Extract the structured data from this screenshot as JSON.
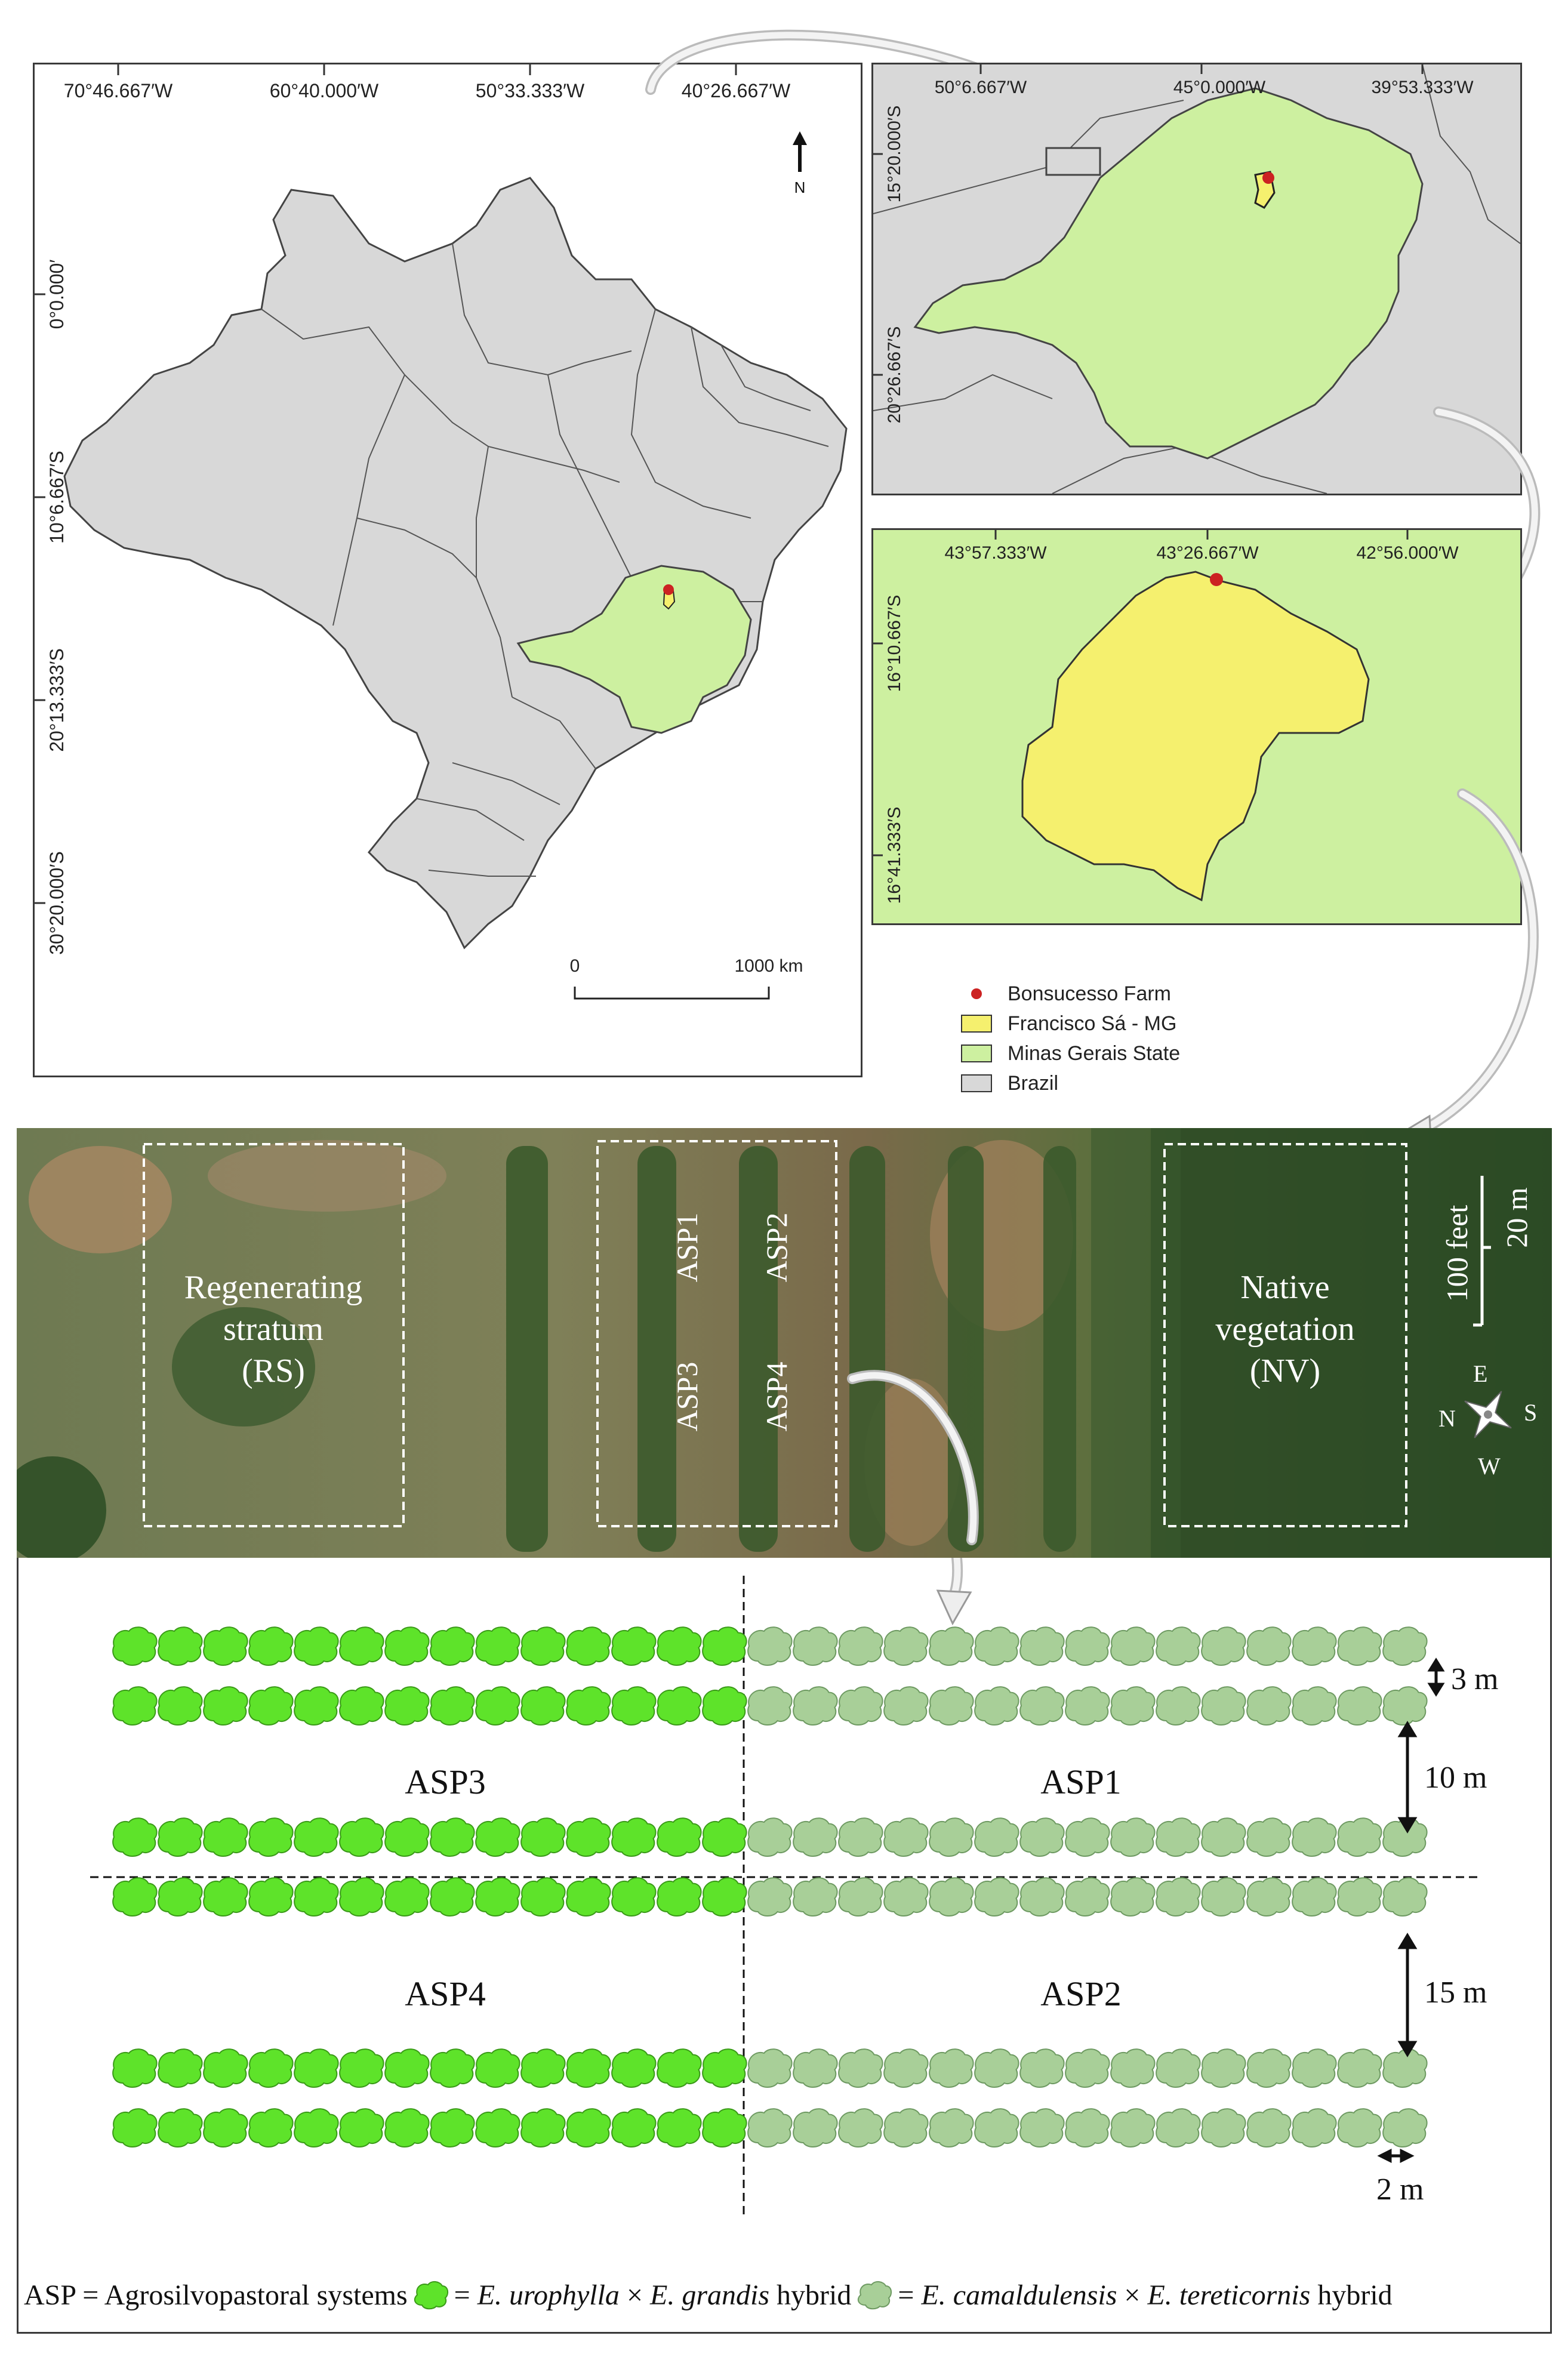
{
  "brazil_map": {
    "lon_labels": [
      "70°46.667′W",
      "60°40.000′W",
      "50°33.333′W",
      "40°26.667′W"
    ],
    "lat_labels": [
      "0°0.000′",
      "10°6.667′S",
      "20°13.333′S",
      "30°20.000′S"
    ],
    "north_label": "N",
    "scale_start": "0",
    "scale_end": "1000 km"
  },
  "state_map": {
    "lon_labels": [
      "50°6.667′W",
      "45°0.000′W",
      "39°53.333′W"
    ],
    "lat_labels": [
      "15°20.000′S",
      "20°26.667′S"
    ]
  },
  "municipality_map": {
    "lon_labels": [
      "43°57.333′W",
      "43°26.667′W",
      "42°56.000′W"
    ],
    "lat_labels": [
      "16°10.667′S",
      "16°41.333′S"
    ]
  },
  "legend": {
    "items": [
      {
        "label": "Bonsucesso Farm",
        "color": "#cc2222"
      },
      {
        "label": "Francisco Sá - MG",
        "color": "#f5f06e"
      },
      {
        "label": "Minas Gerais State",
        "color": "#cdf0a0"
      },
      {
        "label": "Brazil",
        "color": "#d8d8d8"
      }
    ]
  },
  "aerial": {
    "rs_title_1": "Regenerating",
    "rs_title_2": "stratum",
    "rs_abbr": "(RS)",
    "asp_labels": [
      "ASP1",
      "ASP2",
      "ASP3",
      "ASP4"
    ],
    "nv_title_1": "Native",
    "nv_title_2": "vegetation",
    "nv_abbr": "(NV)",
    "scale_feet": "100 feet",
    "scale_m": "20 m",
    "compass": {
      "n": "N",
      "e": "E",
      "s": "S",
      "w": "W"
    }
  },
  "layout": {
    "asp3": "ASP3",
    "asp1": "ASP1",
    "asp4": "ASP4",
    "asp2": "ASP2",
    "dim_3m": "3 m",
    "dim_10m": "10 m",
    "dim_15m": "15 m",
    "dim_2m": "2 m",
    "colors": {
      "urophylla": "#5ee32a",
      "camaldulensis": "#a8cf98"
    }
  },
  "caption": {
    "asp_def": "ASP = Agrosilvopastoral systems",
    "eq1": "=",
    "sp1a": "E. urophylla",
    "times1": "×",
    "sp1b": "E. grandis",
    "hybrid1": "hybrid",
    "eq2": "=",
    "sp2a": "E. camaldulensis",
    "times2": "×",
    "sp2b": "E. tereticornis",
    "hybrid2": "hybrid"
  }
}
